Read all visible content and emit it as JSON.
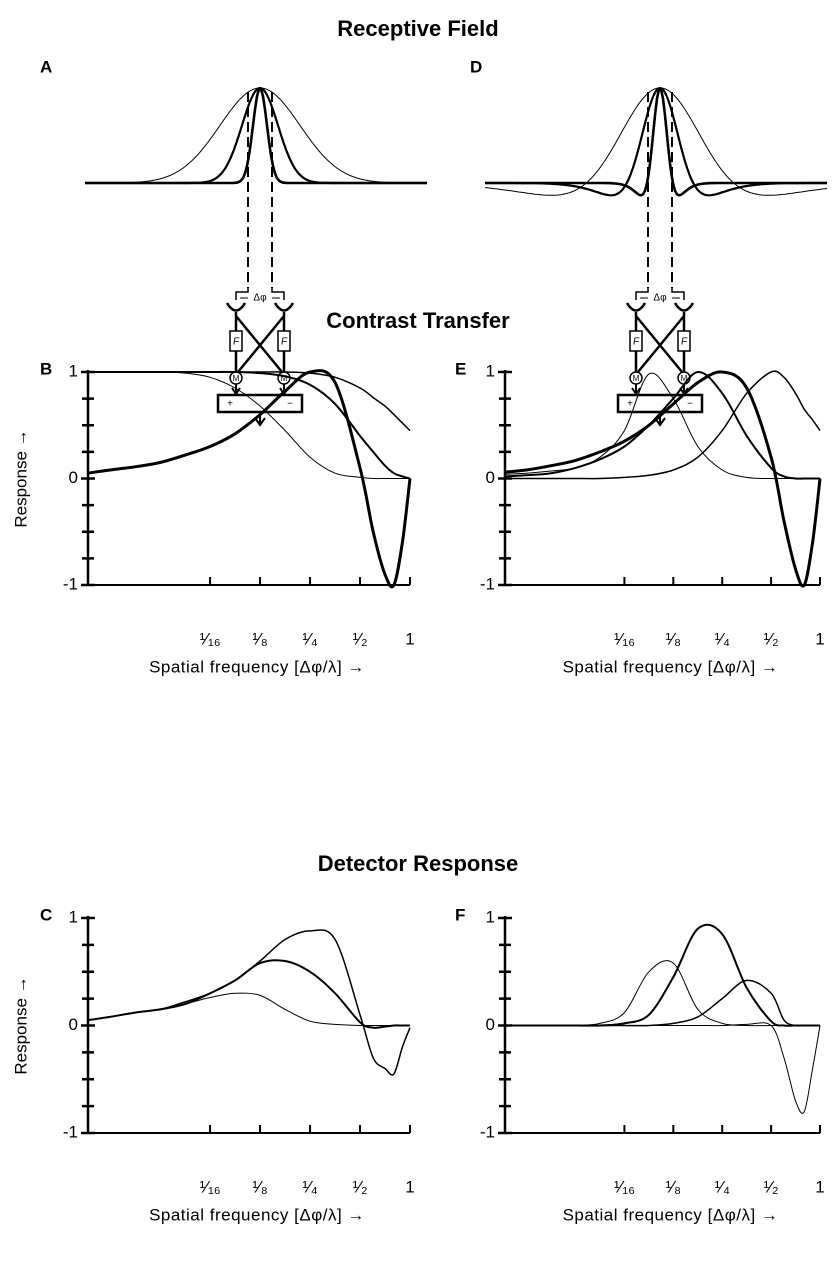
{
  "sections": [
    "Receptive Field",
    "Contrast Transfer",
    "Detector Response"
  ],
  "receptive_field": [
    {
      "panel": "A",
      "delta": "Δφ",
      "filter": "F",
      "multiplier": "M",
      "plus": "+",
      "minus": "−"
    },
    {
      "panel": "D",
      "delta": "Δφ",
      "filter": "F",
      "multiplier": "M",
      "plus": "+",
      "minus": "−"
    }
  ],
  "chart_data": [
    {
      "type": "line",
      "panel": "B",
      "ylabel": "Response →",
      "xlabel": "Spatial frequency [Δφ/λ] →",
      "xscale": "log",
      "xlim": [
        0.0115,
        1
      ],
      "ylim": [
        -1,
        1
      ],
      "xticks": [
        {
          "value": 0.0625,
          "label": "¹⁄₁₆"
        },
        {
          "value": 0.125,
          "label": "¹⁄₈"
        },
        {
          "value": 0.25,
          "label": "¹⁄₄"
        },
        {
          "value": 0.5,
          "label": "¹⁄₂"
        },
        1
      ],
      "yticks": [
        -1,
        0,
        1
      ],
      "minor_yticks": [
        -0.75,
        -0.5,
        -0.25,
        0.25,
        0.5,
        0.75
      ],
      "x": [
        0.0115,
        0.0156,
        0.0221,
        0.03125,
        0.0442,
        0.0625,
        0.0884,
        0.125,
        0.177,
        0.25,
        0.354,
        0.5,
        0.6,
        0.707,
        0.8,
        0.9,
        1
      ],
      "series": [
        {
          "color": "#000000",
          "line_width": 1,
          "values": [
            1,
            1,
            1,
            1,
            0.99,
            0.95,
            0.85,
            0.68,
            0.45,
            0.2,
            0.05,
            0.01,
            0,
            0,
            0,
            0,
            0
          ]
        },
        {
          "color": "#000000",
          "line_width": 2,
          "values": [
            1,
            1,
            1,
            1,
            1,
            1,
            1,
            0.99,
            0.96,
            0.88,
            0.7,
            0.4,
            0.25,
            0.12,
            0.05,
            0.02,
            0
          ]
        },
        {
          "color": "#000000",
          "line_width": 1.5,
          "values": [
            1,
            1,
            1,
            1,
            1,
            1,
            1,
            1,
            1,
            0.99,
            0.95,
            0.85,
            0.76,
            0.68,
            0.6,
            0.52,
            0.45
          ]
        },
        {
          "color": "#000000",
          "line_width": 3,
          "values": [
            0.05,
            0.08,
            0.11,
            0.15,
            0.22,
            0.3,
            0.42,
            0.6,
            0.82,
            1,
            0.9,
            0.1,
            -0.5,
            -0.9,
            -1,
            -0.6,
            0
          ]
        }
      ]
    },
    {
      "type": "line",
      "panel": "E",
      "xlabel": "Spatial frequency [Δφ/λ] →",
      "xscale": "log",
      "xlim": [
        0.0115,
        1
      ],
      "ylim": [
        -1,
        1
      ],
      "xticks": [
        {
          "value": 0.0625,
          "label": "¹⁄₁₆"
        },
        {
          "value": 0.125,
          "label": "¹⁄₈"
        },
        {
          "value": 0.25,
          "label": "¹⁄₄"
        },
        {
          "value": 0.5,
          "label": "¹⁄₂"
        },
        1
      ],
      "yticks": [
        -1,
        0,
        1
      ],
      "minor_yticks": [
        -0.75,
        -0.5,
        -0.25,
        0.25,
        0.5,
        0.75
      ],
      "x": [
        0.0115,
        0.0156,
        0.0221,
        0.03125,
        0.0442,
        0.0625,
        0.0884,
        0.125,
        0.177,
        0.25,
        0.354,
        0.5,
        0.6,
        0.707,
        0.8,
        0.9,
        1
      ],
      "series": [
        {
          "color": "#000000",
          "line_width": 1,
          "values": [
            0.04,
            0.05,
            0.07,
            0.1,
            0.2,
            0.45,
            0.98,
            0.75,
            0.3,
            0.08,
            0.01,
            0,
            0,
            0,
            0,
            0,
            0
          ]
        },
        {
          "color": "#000000",
          "line_width": 2,
          "values": [
            0.02,
            0.03,
            0.05,
            0.1,
            0.18,
            0.3,
            0.5,
            0.75,
            1,
            0.8,
            0.4,
            0.1,
            0.02,
            0,
            0,
            0,
            0
          ]
        },
        {
          "color": "#000000",
          "line_width": 3,
          "values": [
            0.06,
            0.08,
            0.12,
            0.17,
            0.25,
            0.35,
            0.5,
            0.7,
            0.9,
            1,
            0.85,
            0.2,
            -0.4,
            -0.85,
            -1,
            -0.6,
            0
          ]
        },
        {
          "color": "#000000",
          "line_width": 1.5,
          "values": [
            0,
            0,
            0,
            0,
            0,
            0.01,
            0.03,
            0.08,
            0.2,
            0.45,
            0.8,
            1,
            0.95,
            0.8,
            0.65,
            0.55,
            0.45
          ]
        }
      ]
    },
    {
      "type": "line",
      "panel": "C",
      "ylabel": "Response →",
      "xlabel": "Spatial frequency [Δφ/λ] →",
      "xscale": "log",
      "xlim": [
        0.0115,
        1
      ],
      "ylim": [
        -1,
        1
      ],
      "xticks": [
        {
          "value": 0.0625,
          "label": "¹⁄₁₆"
        },
        {
          "value": 0.125,
          "label": "¹⁄₈"
        },
        {
          "value": 0.25,
          "label": "¹⁄₄"
        },
        {
          "value": 0.5,
          "label": "¹⁄₂"
        },
        1
      ],
      "yticks": [
        -1,
        0,
        1
      ],
      "minor_yticks": [
        -0.75,
        -0.5,
        -0.25,
        0.25,
        0.5,
        0.75
      ],
      "x": [
        0.0115,
        0.0156,
        0.0221,
        0.03125,
        0.0442,
        0.0625,
        0.0884,
        0.125,
        0.177,
        0.25,
        0.354,
        0.5,
        0.6,
        0.707,
        0.8,
        0.9,
        1
      ],
      "series": [
        {
          "color": "#000000",
          "line_width": 1,
          "values": [
            0.05,
            0.08,
            0.12,
            0.15,
            0.2,
            0.26,
            0.3,
            0.28,
            0.15,
            0.04,
            0.01,
            0,
            0,
            0,
            0,
            0,
            0
          ]
        },
        {
          "color": "#000000",
          "line_width": 2,
          "values": [
            0.05,
            0.08,
            0.12,
            0.15,
            0.2,
            0.3,
            0.42,
            0.58,
            0.6,
            0.5,
            0.3,
            0.03,
            -0.02,
            -0.01,
            0,
            0,
            0
          ]
        },
        {
          "color": "#000000",
          "line_width": 1.5,
          "values": [
            0.05,
            0.08,
            0.12,
            0.15,
            0.22,
            0.3,
            0.42,
            0.6,
            0.8,
            0.88,
            0.8,
            0.1,
            -0.3,
            -0.4,
            -0.45,
            -0.2,
            -0.02
          ]
        }
      ]
    },
    {
      "type": "line",
      "panel": "F",
      "xlabel": "Spatial frequency [Δφ/λ] →",
      "xscale": "log",
      "xlim": [
        0.0115,
        1
      ],
      "ylim": [
        -1,
        1
      ],
      "xticks": [
        {
          "value": 0.0625,
          "label": "¹⁄₁₆"
        },
        {
          "value": 0.125,
          "label": "¹⁄₈"
        },
        {
          "value": 0.25,
          "label": "¹⁄₄"
        },
        {
          "value": 0.5,
          "label": "¹⁄₂"
        },
        1
      ],
      "yticks": [
        -1,
        0,
        1
      ],
      "minor_yticks": [
        -0.75,
        -0.5,
        -0.25,
        0.25,
        0.5,
        0.75
      ],
      "x": [
        0.0115,
        0.0156,
        0.0221,
        0.03125,
        0.0442,
        0.0625,
        0.0884,
        0.125,
        0.177,
        0.25,
        0.354,
        0.5,
        0.6,
        0.707,
        0.8,
        0.9,
        1
      ],
      "series": [
        {
          "color": "#000000",
          "line_width": 1,
          "values": [
            0,
            0,
            0,
            0,
            0.02,
            0.12,
            0.5,
            0.58,
            0.15,
            0.02,
            0,
            0,
            0,
            0,
            0,
            0,
            0
          ]
        },
        {
          "color": "#000000",
          "line_width": 2,
          "values": [
            0,
            0,
            0,
            0,
            0,
            0.02,
            0.1,
            0.45,
            0.9,
            0.85,
            0.35,
            0.04,
            0,
            0,
            0,
            0,
            0
          ]
        },
        {
          "color": "#000000",
          "line_width": 1.5,
          "values": [
            0,
            0,
            0,
            0,
            0,
            0,
            0,
            0.02,
            0.08,
            0.25,
            0.42,
            0.3,
            0.05,
            0,
            0,
            0,
            0
          ]
        },
        {
          "color": "#000000",
          "line_width": 1,
          "values": [
            0,
            0,
            0,
            0,
            0,
            0,
            0,
            0,
            0,
            0,
            0.01,
            0,
            -0.3,
            -0.7,
            -0.8,
            -0.4,
            0
          ]
        }
      ]
    }
  ]
}
